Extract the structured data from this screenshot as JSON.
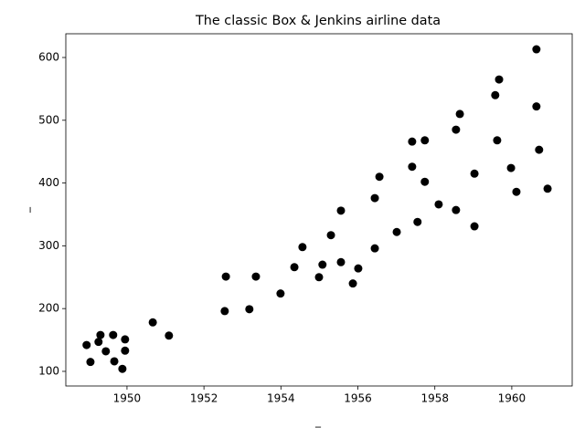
{
  "chart_data": {
    "type": "scatter",
    "title": "The classic Box & Jenkins airline data",
    "x_label": "_",
    "y_label": "_",
    "color": "#000000",
    "x": [
      1948.95,
      1949.05,
      1949.26,
      1949.31,
      1949.45,
      1949.64,
      1949.67,
      1949.88,
      1949.95,
      1949.95,
      1950.67,
      1951.09,
      1952.57,
      1952.54,
      1953.18,
      1953.35,
      1953.99,
      1954.35,
      1954.56,
      1954.99,
      1955.08,
      1955.3,
      1955.56,
      1955.56,
      1955.87,
      1956.01,
      1956.44,
      1956.44,
      1956.56,
      1957.01,
      1957.41,
      1957.41,
      1957.55,
      1957.74,
      1957.74,
      1958.1,
      1958.55,
      1958.55,
      1958.65,
      1959.03,
      1959.03,
      1959.57,
      1959.62,
      1959.67,
      1959.98,
      1960.12,
      1960.64,
      1960.64,
      1960.71,
      1960.93
    ],
    "values": [
      142,
      115,
      147,
      158,
      132,
      158,
      116,
      104,
      151,
      133,
      178,
      157,
      251,
      196,
      199,
      251,
      224,
      266,
      298,
      250,
      270,
      317,
      274,
      356,
      240,
      264,
      296,
      376,
      410,
      322,
      426,
      466,
      338,
      402,
      468,
      366,
      357,
      485,
      510,
      415,
      331,
      540,
      468,
      565,
      424,
      386,
      613,
      522,
      453,
      391
    ],
    "xlim": [
      1948.41,
      1961.57
    ],
    "xticks": [
      1950,
      1952,
      1954,
      1956,
      1958,
      1960
    ],
    "ylim": [
      76.7,
      637.8
    ],
    "yticks": [
      100,
      200,
      300,
      400,
      500,
      600
    ]
  }
}
